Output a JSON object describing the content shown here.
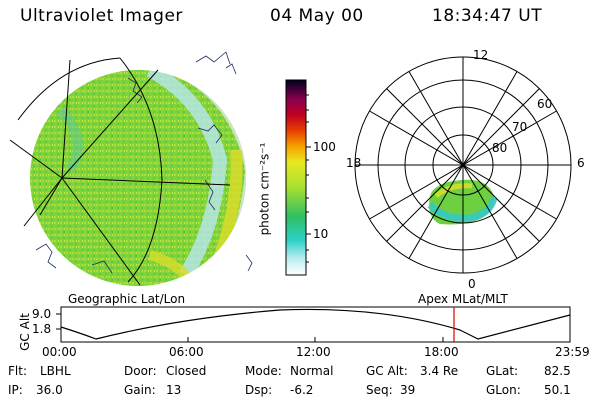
{
  "header": {
    "instrument": "Ultraviolet Imager",
    "date": "04 May 00",
    "time": "18:34:47 UT"
  },
  "colorbar": {
    "unit_label": "photon cm⁻²s⁻¹",
    "ticks": [
      "100",
      "10"
    ],
    "scale": "log"
  },
  "polar_plot": {
    "mlt_labels": {
      "top": "12",
      "right": "6",
      "bottom": "0",
      "left": "18"
    },
    "lat_labels": [
      "60",
      "70",
      "80"
    ],
    "caption": "Apex MLat/MLT"
  },
  "geo_plot": {
    "caption": "Geographic Lat/Lon"
  },
  "altitude_panel": {
    "ylabel": "GC Alt",
    "y_ticks": [
      "9.0",
      "1.8"
    ],
    "x_ticks": [
      "00:00",
      "06:00",
      "12:00",
      "18:00",
      "23:59"
    ],
    "current_time_marker": "18:34:47"
  },
  "info": {
    "flt_label": "Flt:",
    "flt_value": "LBHL",
    "ip_label": "IP:",
    "ip_value": "36.0",
    "door_label": "Door:",
    "door_value": "Closed",
    "gain_label": "Gain:",
    "gain_value": "13",
    "mode_label": "Mode:",
    "mode_value": "Normal",
    "dsp_label": "Dsp:",
    "dsp_value": "-6.2",
    "gcalt_label": "GC Alt:",
    "gcalt_value": "3.4 Re",
    "seq_label": "Seq:",
    "seq_value": "39",
    "glat_label": "GLat:",
    "glat_value": "82.5",
    "glon_label": "GLon:",
    "glon_value": "50.1"
  },
  "colors": {
    "background": "#ffffff",
    "emission_green": "#7ad236",
    "emission_yellow": "#d8dc2a",
    "emission_cyan": "#35c8c8",
    "marker_red": "#e00000"
  }
}
